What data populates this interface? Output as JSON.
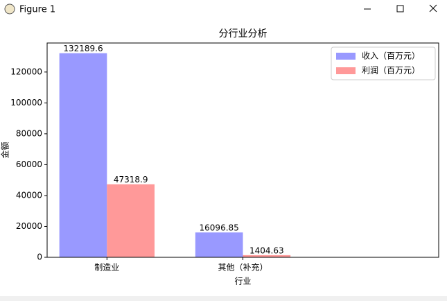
{
  "window": {
    "title": "Figure 1"
  },
  "chart_data": {
    "type": "bar",
    "title": "分行业分析",
    "x_label": "行业",
    "y_label": "金额",
    "categories": [
      "制造业",
      "其他（补充）"
    ],
    "series": [
      {
        "name": "收入（百万元）",
        "color": "#9999ff",
        "values": [
          132189.6,
          16096.85
        ]
      },
      {
        "name": "利润（百万元）",
        "color": "#ff9999",
        "values": [
          47318.9,
          1404.63
        ]
      }
    ],
    "ylim": [
      0,
      138799
    ],
    "yticks": [
      0,
      20000,
      40000,
      60000,
      80000,
      100000,
      120000
    ],
    "grid": false,
    "legend": "upper right"
  }
}
